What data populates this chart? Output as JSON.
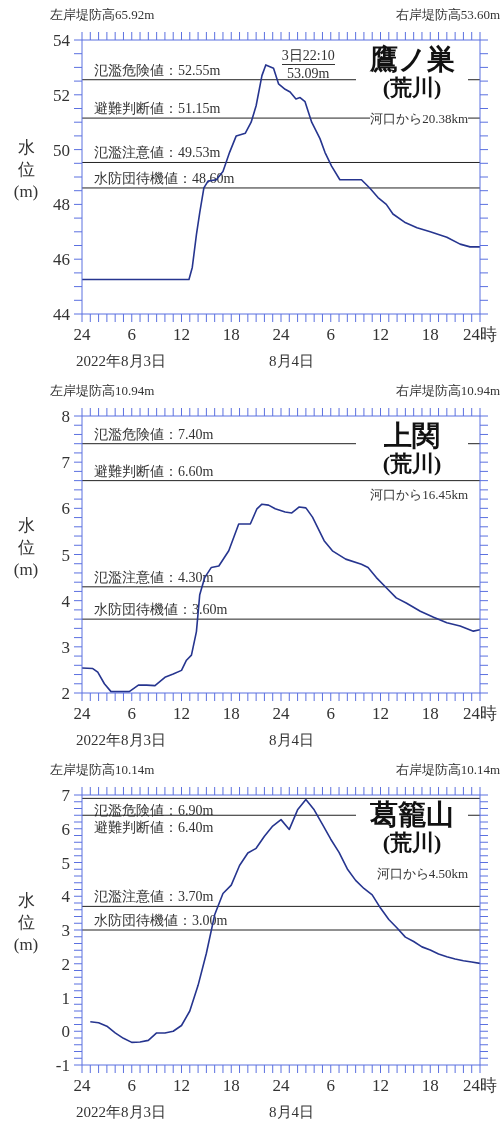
{
  "chart_data": [
    {
      "type": "line",
      "title": "鷹ノ巣",
      "subtitle": "(荒川)",
      "ylabel": "水位(m)",
      "color": "#26358f",
      "x": [
        "2022-08-03T00:00",
        "2022-08-03T12:54",
        "2022-08-03T13:18",
        "2022-08-03T13:48",
        "2022-08-03T14:12",
        "2022-08-03T14:42",
        "2022-08-03T15:12",
        "2022-08-03T16:12",
        "2022-08-03T17:00",
        "2022-08-03T17:48",
        "2022-08-03T18:36",
        "2022-08-03T19:42",
        "2022-08-03T20:24",
        "2022-08-03T21:00",
        "2022-08-03T21:42",
        "2022-08-03T22:10",
        "2022-08-03T23:06",
        "2022-08-03T23:42",
        "2022-08-04T00:30",
        "2022-08-04T01:06",
        "2022-08-04T01:48",
        "2022-08-04T02:18",
        "2022-08-04T02:54",
        "2022-08-04T03:42",
        "2022-08-04T04:42",
        "2022-08-04T05:18",
        "2022-08-04T06:06",
        "2022-08-04T07:06",
        "2022-08-04T08:06",
        "2022-08-04T09:42",
        "2022-08-04T10:42",
        "2022-08-04T11:42",
        "2022-08-04T12:42",
        "2022-08-04T13:30",
        "2022-08-04T14:54",
        "2022-08-04T16:24",
        "2022-08-04T18:00",
        "2022-08-04T20:00",
        "2022-08-04T21:36",
        "2022-08-04T22:48",
        "2022-08-05T00:00"
      ],
      "values": [
        45.26,
        45.26,
        45.7,
        46.9,
        47.7,
        48.6,
        48.85,
        48.9,
        49.2,
        49.9,
        50.5,
        50.6,
        51.0,
        51.6,
        52.7,
        53.09,
        52.97,
        52.4,
        52.2,
        52.1,
        51.85,
        51.9,
        51.75,
        51.0,
        50.4,
        49.9,
        49.4,
        48.9,
        48.9,
        48.9,
        48.6,
        48.25,
        48.0,
        47.65,
        47.35,
        47.15,
        47.0,
        46.8,
        46.55,
        46.45,
        46.45
      ],
      "xlim": [
        "2022-08-03T00:00",
        "2022-08-05T00:00"
      ],
      "xticks": [
        {
          "value": "2022-08-03T00:00",
          "label": "24"
        },
        {
          "value": "2022-08-03T01:00",
          "label": null
        },
        {
          "value": "2022-08-03T02:00",
          "label": null
        },
        {
          "value": "2022-08-03T03:00",
          "label": null
        },
        {
          "value": "2022-08-03T04:00",
          "label": null
        },
        {
          "value": "2022-08-03T05:00",
          "label": null
        },
        {
          "value": "2022-08-03T06:00",
          "label": "6"
        },
        {
          "value": "2022-08-03T07:00",
          "label": null
        },
        {
          "value": "2022-08-03T08:00",
          "label": null
        },
        {
          "value": "2022-08-03T09:00",
          "label": null
        },
        {
          "value": "2022-08-03T10:00",
          "label": null
        },
        {
          "value": "2022-08-03T11:00",
          "label": null
        },
        {
          "value": "2022-08-03T12:00",
          "label": "12"
        },
        {
          "value": "2022-08-03T13:00",
          "label": null
        },
        {
          "value": "2022-08-03T14:00",
          "label": null
        },
        {
          "value": "2022-08-03T15:00",
          "label": null
        },
        {
          "value": "2022-08-03T16:00",
          "label": null
        },
        {
          "value": "2022-08-03T17:00",
          "label": null
        },
        {
          "value": "2022-08-03T18:00",
          "label": "18"
        },
        {
          "value": "2022-08-03T19:00",
          "label": null
        },
        {
          "value": "2022-08-03T20:00",
          "label": null
        },
        {
          "value": "2022-08-03T21:00",
          "label": null
        },
        {
          "value": "2022-08-03T22:00",
          "label": null
        },
        {
          "value": "2022-08-03T23:00",
          "label": null
        },
        {
          "value": "2022-08-04T00:00",
          "label": "24"
        },
        {
          "value": "2022-08-04T01:00",
          "label": null
        },
        {
          "value": "2022-08-04T02:00",
          "label": null
        },
        {
          "value": "2022-08-04T03:00",
          "label": null
        },
        {
          "value": "2022-08-04T04:00",
          "label": null
        },
        {
          "value": "2022-08-04T05:00",
          "label": null
        },
        {
          "value": "2022-08-04T06:00",
          "label": "6"
        },
        {
          "value": "2022-08-04T07:00",
          "label": null
        },
        {
          "value": "2022-08-04T08:00",
          "label": null
        },
        {
          "value": "2022-08-04T09:00",
          "label": null
        },
        {
          "value": "2022-08-04T10:00",
          "label": null
        },
        {
          "value": "2022-08-04T11:00",
          "label": null
        },
        {
          "value": "2022-08-04T12:00",
          "label": "12"
        },
        {
          "value": "2022-08-04T13:00",
          "label": null
        },
        {
          "value": "2022-08-04T14:00",
          "label": null
        },
        {
          "value": "2022-08-04T15:00",
          "label": null
        },
        {
          "value": "2022-08-04T16:00",
          "label": null
        },
        {
          "value": "2022-08-04T17:00",
          "label": null
        },
        {
          "value": "2022-08-04T18:00",
          "label": "18"
        },
        {
          "value": "2022-08-04T19:00",
          "label": null
        },
        {
          "value": "2022-08-04T20:00",
          "label": null
        },
        {
          "value": "2022-08-04T21:00",
          "label": null
        },
        {
          "value": "2022-08-04T22:00",
          "label": null
        },
        {
          "value": "2022-08-04T23:00",
          "label": null
        },
        {
          "value": "2022-08-05T00:00",
          "label": "24時"
        }
      ],
      "ylim": [
        44,
        54
      ],
      "yticks": [
        44,
        {
          "value": 44.5,
          "label": null
        },
        {
          "value": 45,
          "label": null
        },
        {
          "value": 45.5,
          "label": null
        },
        46,
        {
          "value": 46.5,
          "label": null
        },
        {
          "value": 47,
          "label": null
        },
        {
          "value": 47.5,
          "label": null
        },
        48,
        {
          "value": 48.5,
          "label": null
        },
        {
          "value": 49,
          "label": null
        },
        {
          "value": 49.5,
          "label": null
        },
        50,
        {
          "value": 50.5,
          "label": null
        },
        {
          "value": 51,
          "label": null
        },
        {
          "value": 51.5,
          "label": null
        },
        52,
        {
          "value": 52.5,
          "label": null
        },
        {
          "value": 53,
          "label": null
        },
        {
          "value": 53.5,
          "label": null
        },
        54
      ],
      "ref_lines": [
        {
          "axis": "y",
          "value": 52.55,
          "label": "氾濫危険値：52.55m",
          "color": "#222222"
        },
        {
          "axis": "y",
          "value": 51.15,
          "label": "避難判断値：51.15m",
          "color": "#222222"
        },
        {
          "axis": "y",
          "value": 49.53,
          "label": "氾濫注意値：49.53m",
          "color": "#222222"
        },
        {
          "axis": "y",
          "value": 48.6,
          "label": "水防団待機値：48.60m",
          "color": "#222222"
        }
      ],
      "annotations": [
        "左岸堤防高65.92m",
        "右岸堤防高53.60m",
        "河口から20.38km",
        "2022年8月3日",
        "8月4日",
        {
          "text": "3日22:10\n53.09m",
          "x": "2022-08-03T22:10",
          "y": 53.09
        }
      ],
      "grid": false,
      "legend": false,
      "marker": "none",
      "line_style": "solid"
    },
    {
      "type": "line",
      "title": "上関",
      "subtitle": "(荒川)",
      "ylabel": "水位(m)",
      "color": "#26358f",
      "x": [
        "2022-08-03T00:00",
        "2022-08-03T01:18",
        "2022-08-03T01:54",
        "2022-08-03T02:42",
        "2022-08-03T03:30",
        "2022-08-03T05:42",
        "2022-08-03T06:48",
        "2022-08-03T07:48",
        "2022-08-03T08:48",
        "2022-08-03T10:00",
        "2022-08-03T11:00",
        "2022-08-03T12:00",
        "2022-08-03T12:36",
        "2022-08-03T13:12",
        "2022-08-03T13:48",
        "2022-08-03T14:12",
        "2022-08-03T14:48",
        "2022-08-03T15:36",
        "2022-08-03T16:30",
        "2022-08-03T17:42",
        "2022-08-03T18:54",
        "2022-08-03T20:18",
        "2022-08-03T21:06",
        "2022-08-03T21:42",
        "2022-08-03T22:30",
        "2022-08-03T23:18",
        "2022-08-04T00:30",
        "2022-08-04T01:18",
        "2022-08-04T02:12",
        "2022-08-04T03:00",
        "2022-08-04T03:48",
        "2022-08-04T05:12",
        "2022-08-04T06:12",
        "2022-08-04T07:48",
        "2022-08-04T09:42",
        "2022-08-04T10:30",
        "2022-08-04T11:30",
        "2022-08-04T12:42",
        "2022-08-04T13:54",
        "2022-08-04T15:06",
        "2022-08-04T16:48",
        "2022-08-04T18:24",
        "2022-08-04T20:00",
        "2022-08-04T21:36",
        "2022-08-04T23:12",
        "2022-08-05T00:00"
      ],
      "values": [
        2.54,
        2.53,
        2.45,
        2.2,
        2.03,
        2.03,
        2.17,
        2.17,
        2.16,
        2.34,
        2.41,
        2.49,
        2.71,
        2.82,
        3.33,
        4.13,
        4.5,
        4.72,
        4.75,
        5.08,
        5.66,
        5.66,
        5.99,
        6.09,
        6.07,
        5.99,
        5.92,
        5.9,
        6.03,
        6.01,
        5.81,
        5.3,
        5.08,
        4.9,
        4.79,
        4.72,
        4.5,
        4.28,
        4.06,
        3.95,
        3.77,
        3.64,
        3.52,
        3.45,
        3.34,
        3.37
      ],
      "xlim": [
        "2022-08-03T00:00",
        "2022-08-05T00:00"
      ],
      "xticks": [
        {
          "value": "2022-08-03T00:00",
          "label": "24"
        },
        {
          "value": "2022-08-03T01:00",
          "label": null
        },
        {
          "value": "2022-08-03T02:00",
          "label": null
        },
        {
          "value": "2022-08-03T03:00",
          "label": null
        },
        {
          "value": "2022-08-03T04:00",
          "label": null
        },
        {
          "value": "2022-08-03T05:00",
          "label": null
        },
        {
          "value": "2022-08-03T06:00",
          "label": "6"
        },
        {
          "value": "2022-08-03T07:00",
          "label": null
        },
        {
          "value": "2022-08-03T08:00",
          "label": null
        },
        {
          "value": "2022-08-03T09:00",
          "label": null
        },
        {
          "value": "2022-08-03T10:00",
          "label": null
        },
        {
          "value": "2022-08-03T11:00",
          "label": null
        },
        {
          "value": "2022-08-03T12:00",
          "label": "12"
        },
        {
          "value": "2022-08-03T13:00",
          "label": null
        },
        {
          "value": "2022-08-03T14:00",
          "label": null
        },
        {
          "value": "2022-08-03T15:00",
          "label": null
        },
        {
          "value": "2022-08-03T16:00",
          "label": null
        },
        {
          "value": "2022-08-03T17:00",
          "label": null
        },
        {
          "value": "2022-08-03T18:00",
          "label": "18"
        },
        {
          "value": "2022-08-03T19:00",
          "label": null
        },
        {
          "value": "2022-08-03T20:00",
          "label": null
        },
        {
          "value": "2022-08-03T21:00",
          "label": null
        },
        {
          "value": "2022-08-03T22:00",
          "label": null
        },
        {
          "value": "2022-08-03T23:00",
          "label": null
        },
        {
          "value": "2022-08-04T00:00",
          "label": "24"
        },
        {
          "value": "2022-08-04T01:00",
          "label": null
        },
        {
          "value": "2022-08-04T02:00",
          "label": null
        },
        {
          "value": "2022-08-04T03:00",
          "label": null
        },
        {
          "value": "2022-08-04T04:00",
          "label": null
        },
        {
          "value": "2022-08-04T05:00",
          "label": null
        },
        {
          "value": "2022-08-04T06:00",
          "label": "6"
        },
        {
          "value": "2022-08-04T07:00",
          "label": null
        },
        {
          "value": "2022-08-04T08:00",
          "label": null
        },
        {
          "value": "2022-08-04T09:00",
          "label": null
        },
        {
          "value": "2022-08-04T10:00",
          "label": null
        },
        {
          "value": "2022-08-04T11:00",
          "label": null
        },
        {
          "value": "2022-08-04T12:00",
          "label": "12"
        },
        {
          "value": "2022-08-04T13:00",
          "label": null
        },
        {
          "value": "2022-08-04T14:00",
          "label": null
        },
        {
          "value": "2022-08-04T15:00",
          "label": null
        },
        {
          "value": "2022-08-04T16:00",
          "label": null
        },
        {
          "value": "2022-08-04T17:00",
          "label": null
        },
        {
          "value": "2022-08-04T18:00",
          "label": "18"
        },
        {
          "value": "2022-08-04T19:00",
          "label": null
        },
        {
          "value": "2022-08-04T20:00",
          "label": null
        },
        {
          "value": "2022-08-04T21:00",
          "label": null
        },
        {
          "value": "2022-08-04T22:00",
          "label": null
        },
        {
          "value": "2022-08-04T23:00",
          "label": null
        },
        {
          "value": "2022-08-05T00:00",
          "label": "24時"
        }
      ],
      "ylim": [
        2,
        8
      ],
      "yticks": [
        2,
        {
          "value": 2.2,
          "label": null
        },
        {
          "value": 2.4,
          "label": null
        },
        {
          "value": 2.6,
          "label": null
        },
        {
          "value": 2.8,
          "label": null
        },
        3,
        {
          "value": 3.2,
          "label": null
        },
        {
          "value": 3.4,
          "label": null
        },
        {
          "value": 3.6,
          "label": null
        },
        {
          "value": 3.8,
          "label": null
        },
        4,
        {
          "value": 4.2,
          "label": null
        },
        {
          "value": 4.4,
          "label": null
        },
        {
          "value": 4.6,
          "label": null
        },
        {
          "value": 4.8,
          "label": null
        },
        5,
        {
          "value": 5.2,
          "label": null
        },
        {
          "value": 5.4,
          "label": null
        },
        {
          "value": 5.6,
          "label": null
        },
        {
          "value": 5.8,
          "label": null
        },
        6,
        {
          "value": 6.2,
          "label": null
        },
        {
          "value": 6.4,
          "label": null
        },
        {
          "value": 6.6,
          "label": null
        },
        {
          "value": 6.8,
          "label": null
        },
        7,
        {
          "value": 7.2,
          "label": null
        },
        {
          "value": 7.4,
          "label": null
        },
        {
          "value": 7.6,
          "label": null
        },
        {
          "value": 7.8,
          "label": null
        },
        8
      ],
      "ref_lines": [
        {
          "axis": "y",
          "value": 7.4,
          "label": "氾濫危険値：7.40m",
          "color": "#222222"
        },
        {
          "axis": "y",
          "value": 6.6,
          "label": "避難判断値：6.60m",
          "color": "#222222"
        },
        {
          "axis": "y",
          "value": 4.3,
          "label": "氾濫注意値：4.30m",
          "color": "#222222"
        },
        {
          "axis": "y",
          "value": 3.6,
          "label": "水防団待機値：3.60m",
          "color": "#222222"
        }
      ],
      "annotations": [
        "左岸堤防高10.94m",
        "右岸堤防高10.94m",
        "河口から16.45km",
        "2022年8月3日",
        "8月4日"
      ],
      "grid": false,
      "legend": false,
      "marker": "none",
      "line_style": "solid"
    },
    {
      "type": "line",
      "title": "葛籠山",
      "subtitle": "(荒川)",
      "ylabel": "水位(m)",
      "color": "#26358f",
      "x": [
        "2022-08-03T01:00",
        "2022-08-03T02:00",
        "2022-08-03T03:00",
        "2022-08-03T04:00",
        "2022-08-03T05:00",
        "2022-08-03T06:00",
        "2022-08-03T07:00",
        "2022-08-03T08:00",
        "2022-08-03T09:00",
        "2022-08-03T10:00",
        "2022-08-03T11:00",
        "2022-08-03T12:00",
        "2022-08-03T13:00",
        "2022-08-03T14:00",
        "2022-08-03T15:00",
        "2022-08-03T16:00",
        "2022-08-03T17:00",
        "2022-08-03T18:00",
        "2022-08-03T19:00",
        "2022-08-03T20:00",
        "2022-08-03T21:00",
        "2022-08-03T22:00",
        "2022-08-03T23:00",
        "2022-08-04T00:00",
        "2022-08-04T01:00",
        "2022-08-04T02:00",
        "2022-08-04T03:00",
        "2022-08-04T04:00",
        "2022-08-04T05:00",
        "2022-08-04T06:00",
        "2022-08-04T07:00",
        "2022-08-04T08:00",
        "2022-08-04T09:00",
        "2022-08-04T10:00",
        "2022-08-04T11:00",
        "2022-08-04T12:00",
        "2022-08-04T13:00",
        "2022-08-04T14:00",
        "2022-08-04T15:00",
        "2022-08-04T16:00",
        "2022-08-04T17:00",
        "2022-08-04T18:00",
        "2022-08-04T19:00",
        "2022-08-04T20:00",
        "2022-08-04T21:00",
        "2022-08-04T22:00",
        "2022-08-04T23:00",
        "2022-08-05T00:00"
      ],
      "values": [
        0.28,
        0.25,
        0.15,
        -0.05,
        -0.21,
        -0.33,
        -0.32,
        -0.27,
        -0.05,
        -0.05,
        0.0,
        0.17,
        0.6,
        1.36,
        2.31,
        3.45,
        4.08,
        4.33,
        4.91,
        5.28,
        5.42,
        5.78,
        6.08,
        6.27,
        5.98,
        6.56,
        6.87,
        6.56,
        6.13,
        5.69,
        5.3,
        4.81,
        4.47,
        4.23,
        4.04,
        3.65,
        3.31,
        3.06,
        2.79,
        2.66,
        2.5,
        2.41,
        2.29,
        2.21,
        2.14,
        2.09,
        2.05,
        2.01
      ],
      "xlim": [
        "2022-08-03T00:00",
        "2022-08-05T00:00"
      ],
      "xticks": [
        {
          "value": "2022-08-03T00:00",
          "label": "24"
        },
        {
          "value": "2022-08-03T01:00",
          "label": null
        },
        {
          "value": "2022-08-03T02:00",
          "label": null
        },
        {
          "value": "2022-08-03T03:00",
          "label": null
        },
        {
          "value": "2022-08-03T04:00",
          "label": null
        },
        {
          "value": "2022-08-03T05:00",
          "label": null
        },
        {
          "value": "2022-08-03T06:00",
          "label": "6"
        },
        {
          "value": "2022-08-03T07:00",
          "label": null
        },
        {
          "value": "2022-08-03T08:00",
          "label": null
        },
        {
          "value": "2022-08-03T09:00",
          "label": null
        },
        {
          "value": "2022-08-03T10:00",
          "label": null
        },
        {
          "value": "2022-08-03T11:00",
          "label": null
        },
        {
          "value": "2022-08-03T12:00",
          "label": "12"
        },
        {
          "value": "2022-08-03T13:00",
          "label": null
        },
        {
          "value": "2022-08-03T14:00",
          "label": null
        },
        {
          "value": "2022-08-03T15:00",
          "label": null
        },
        {
          "value": "2022-08-03T16:00",
          "label": null
        },
        {
          "value": "2022-08-03T17:00",
          "label": null
        },
        {
          "value": "2022-08-03T18:00",
          "label": "18"
        },
        {
          "value": "2022-08-03T19:00",
          "label": null
        },
        {
          "value": "2022-08-03T20:00",
          "label": null
        },
        {
          "value": "2022-08-03T21:00",
          "label": null
        },
        {
          "value": "2022-08-03T22:00",
          "label": null
        },
        {
          "value": "2022-08-03T23:00",
          "label": null
        },
        {
          "value": "2022-08-04T00:00",
          "label": "24"
        },
        {
          "value": "2022-08-04T01:00",
          "label": null
        },
        {
          "value": "2022-08-04T02:00",
          "label": null
        },
        {
          "value": "2022-08-04T03:00",
          "label": null
        },
        {
          "value": "2022-08-04T04:00",
          "label": null
        },
        {
          "value": "2022-08-04T05:00",
          "label": null
        },
        {
          "value": "2022-08-04T06:00",
          "label": "6"
        },
        {
          "value": "2022-08-04T07:00",
          "label": null
        },
        {
          "value": "2022-08-04T08:00",
          "label": null
        },
        {
          "value": "2022-08-04T09:00",
          "label": null
        },
        {
          "value": "2022-08-04T10:00",
          "label": null
        },
        {
          "value": "2022-08-04T11:00",
          "label": null
        },
        {
          "value": "2022-08-04T12:00",
          "label": "12"
        },
        {
          "value": "2022-08-04T13:00",
          "label": null
        },
        {
          "value": "2022-08-04T14:00",
          "label": null
        },
        {
          "value": "2022-08-04T15:00",
          "label": null
        },
        {
          "value": "2022-08-04T16:00",
          "label": null
        },
        {
          "value": "2022-08-04T17:00",
          "label": null
        },
        {
          "value": "2022-08-04T18:00",
          "label": "18"
        },
        {
          "value": "2022-08-04T19:00",
          "label": null
        },
        {
          "value": "2022-08-04T20:00",
          "label": null
        },
        {
          "value": "2022-08-04T21:00",
          "label": null
        },
        {
          "value": "2022-08-04T22:00",
          "label": null
        },
        {
          "value": "2022-08-04T23:00",
          "label": null
        },
        {
          "value": "2022-08-05T00:00",
          "label": "24時"
        }
      ],
      "ylim": [
        -1,
        7
      ],
      "yticks": [
        -1,
        {
          "value": -0.8,
          "label": null
        },
        {
          "value": -0.6,
          "label": null
        },
        {
          "value": -0.4,
          "label": null
        },
        {
          "value": -0.2,
          "label": null
        },
        0,
        {
          "value": 0.2,
          "label": null
        },
        {
          "value": 0.4,
          "label": null
        },
        {
          "value": 0.6,
          "label": null
        },
        {
          "value": 0.8,
          "label": null
        },
        1,
        {
          "value": 1.2,
          "label": null
        },
        {
          "value": 1.4,
          "label": null
        },
        {
          "value": 1.6,
          "label": null
        },
        {
          "value": 1.8,
          "label": null
        },
        2,
        {
          "value": 2.2,
          "label": null
        },
        {
          "value": 2.4,
          "label": null
        },
        {
          "value": 2.6,
          "label": null
        },
        {
          "value": 2.8,
          "label": null
        },
        3,
        {
          "value": 3.2,
          "label": null
        },
        {
          "value": 3.4,
          "label": null
        },
        {
          "value": 3.6,
          "label": null
        },
        {
          "value": 3.8,
          "label": null
        },
        4,
        {
          "value": 4.2,
          "label": null
        },
        {
          "value": 4.4,
          "label": null
        },
        {
          "value": 4.6,
          "label": null
        },
        {
          "value": 4.8,
          "label": null
        },
        5,
        {
          "value": 5.2,
          "label": null
        },
        {
          "value": 5.4,
          "label": null
        },
        {
          "value": 5.6,
          "label": null
        },
        {
          "value": 5.8,
          "label": null
        },
        6,
        {
          "value": 6.2,
          "label": null
        },
        {
          "value": 6.4,
          "label": null
        },
        {
          "value": 6.6,
          "label": null
        },
        {
          "value": 6.8,
          "label": null
        },
        7
      ],
      "ref_lines": [
        {
          "axis": "y",
          "value": 6.9,
          "label": "氾濫危険値：6.90m",
          "color": "#222222"
        },
        {
          "axis": "y",
          "value": 6.4,
          "label": "避難判断値：6.40m",
          "color": "#222222"
        },
        {
          "axis": "y",
          "value": 3.7,
          "label": "氾濫注意値：3.70m",
          "color": "#222222"
        },
        {
          "axis": "y",
          "value": 3.0,
          "label": "水防団待機値：3.00m",
          "color": "#222222"
        }
      ],
      "annotations": [
        "左岸堤防高10.14m",
        "右岸堤防高10.14m",
        "河口から4.50km",
        "2022年8月3日",
        "8月4日"
      ],
      "grid": false,
      "legend": false,
      "marker": "none",
      "line_style": "solid"
    }
  ]
}
